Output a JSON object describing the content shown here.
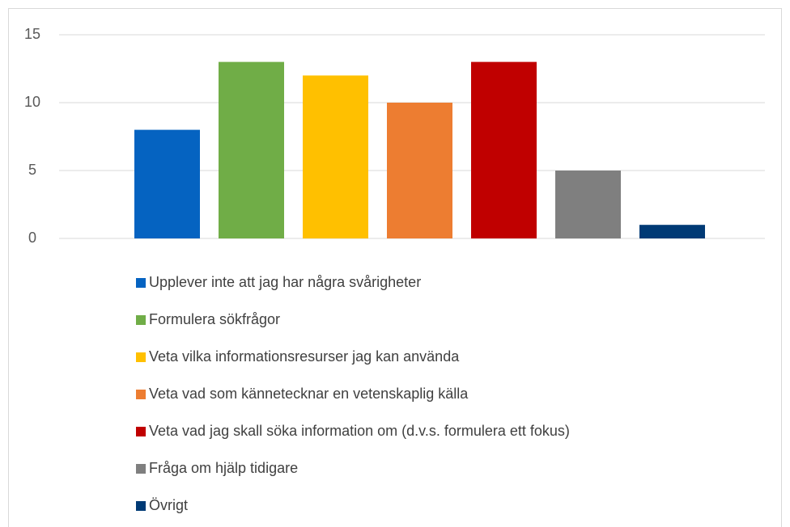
{
  "chart_data": {
    "type": "bar",
    "categories": [
      null
    ],
    "series": [
      {
        "name": "Upplever inte att jag har några svårigheter",
        "color": "#0563c1",
        "values": [
          8
        ]
      },
      {
        "name": "Formulera sökfrågor",
        "color": "#70ad47",
        "values": [
          13
        ]
      },
      {
        "name": "Veta vilka informationsresurser jag kan använda",
        "color": "#ffc000",
        "values": [
          12
        ]
      },
      {
        "name": "Veta vad som kännetecknar en vetenskaplig källa",
        "color": "#ed7d31",
        "values": [
          10
        ]
      },
      {
        "name": "Veta vad jag skall söka information om (d.v.s. formulera ett fokus)",
        "color": "#c00000",
        "values": [
          13
        ]
      },
      {
        "name": "Fråga om hjälp tidigare",
        "color": "#7f7f7f",
        "values": [
          5
        ]
      },
      {
        "name": "Övrigt",
        "color": "#003a75",
        "values": [
          1
        ]
      }
    ],
    "ylim": [
      0,
      15
    ],
    "yticks": [
      0,
      5,
      10,
      15
    ],
    "grid": true,
    "legend": "bottom"
  }
}
